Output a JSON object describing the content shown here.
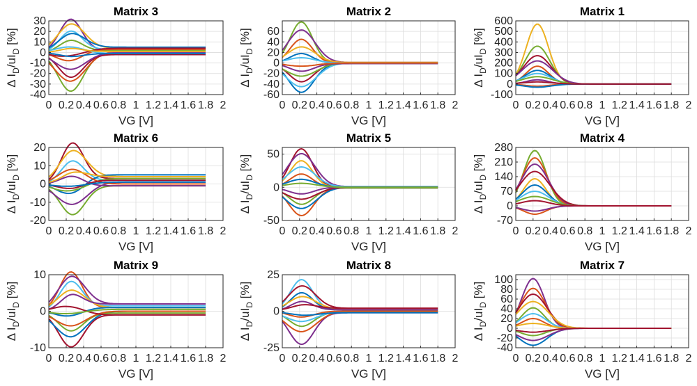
{
  "figure": {
    "xlabel": "VG [V]",
    "ylabel": "Δ I_D/uI_D [%]"
  },
  "chart_data": [
    {
      "type": "line",
      "title": "Matrix 3",
      "xlim": [
        0,
        2
      ],
      "ylim": [
        -40,
        30
      ],
      "xticks": [
        "0",
        "0.2",
        "0.4",
        "0.6",
        "0.8",
        "1",
        "1.2",
        "1.4",
        "1.6",
        "1.8",
        "2"
      ],
      "yticks": [
        -40,
        -30,
        -20,
        -10,
        0,
        10,
        20,
        30
      ],
      "grid": true,
      "x_end": 1.8,
      "peak_x": 0.25,
      "extremes": [
        30,
        -36
      ],
      "series": [
        {
          "color": "#7E2F8E",
          "peak": 30,
          "tail": 2
        },
        {
          "color": "#77AC30",
          "peak": -36,
          "tail": -1
        },
        {
          "color": "#EDB120",
          "peak": 24,
          "tail": 4
        },
        {
          "color": "#D95319",
          "peak": -28,
          "tail": 1
        },
        {
          "color": "#4DBEEE",
          "peak": 18,
          "tail": 3
        },
        {
          "color": "#A2142F",
          "peak": -22,
          "tail": -2
        },
        {
          "color": "#0072BD",
          "peak": 14,
          "tail": 5
        },
        {
          "color": "#7E2F8E",
          "peak": -16,
          "tail": 0
        },
        {
          "color": "#77AC30",
          "peak": 10,
          "tail": 2
        },
        {
          "color": "#D95319",
          "peak": -10,
          "tail": 3
        },
        {
          "color": "#4DBEEE",
          "peak": 6,
          "tail": -1
        },
        {
          "color": "#A2142F",
          "peak": -6,
          "tail": 4
        },
        {
          "color": "#EDB120",
          "peak": 3,
          "tail": 1
        },
        {
          "color": "#0072BD",
          "peak": -3,
          "tail": -1
        }
      ]
    },
    {
      "type": "line",
      "title": "Matrix 2",
      "xlim": [
        0,
        2
      ],
      "ylim": [
        -60,
        80
      ],
      "xticks": [
        "0",
        "0.2",
        "0.4",
        "0.6",
        "0.8",
        "1",
        "1.2",
        "1.4",
        "1.6",
        "1.8",
        "2"
      ],
      "yticks": [
        -60,
        -40,
        -20,
        0,
        20,
        40,
        60
      ],
      "grid": true,
      "x_end": 1.8,
      "peak_x": 0.22,
      "extremes": [
        78,
        -55
      ],
      "series": [
        {
          "color": "#77AC30",
          "peak": 78,
          "tail": 0
        },
        {
          "color": "#0072BD",
          "peak": -55,
          "tail": -1
        },
        {
          "color": "#7E2F8E",
          "peak": 62,
          "tail": 1
        },
        {
          "color": "#4DBEEE",
          "peak": -45,
          "tail": 0
        },
        {
          "color": "#D95319",
          "peak": 45,
          "tail": 0
        },
        {
          "color": "#A2142F",
          "peak": -35,
          "tail": -1
        },
        {
          "color": "#EDB120",
          "peak": 30,
          "tail": 1
        },
        {
          "color": "#77AC30",
          "peak": -25,
          "tail": 0
        },
        {
          "color": "#0072BD",
          "peak": 18,
          "tail": 0
        },
        {
          "color": "#7E2F8E",
          "peak": -15,
          "tail": -1
        },
        {
          "color": "#4DBEEE",
          "peak": 10,
          "tail": 0
        },
        {
          "color": "#D95319",
          "peak": -6,
          "tail": 0
        }
      ]
    },
    {
      "type": "line",
      "title": "Matrix 1",
      "xlim": [
        0,
        2
      ],
      "ylim": [
        -100,
        600
      ],
      "xticks": [
        "0",
        "0.2",
        "0.4",
        "0.6",
        "0.8",
        "1",
        "1.2",
        "1.4",
        "1.6",
        "1.8",
        "2"
      ],
      "yticks": [
        -100,
        0,
        100,
        200,
        300,
        400,
        500,
        600
      ],
      "grid": true,
      "x_end": 1.8,
      "peak_x": 0.25,
      "extremes": [
        570,
        -30
      ],
      "series": [
        {
          "color": "#EDB120",
          "peak": 570,
          "tail": 0
        },
        {
          "color": "#77AC30",
          "peak": 360,
          "tail": 0
        },
        {
          "color": "#A2142F",
          "peak": 270,
          "tail": 0
        },
        {
          "color": "#7E2F8E",
          "peak": 220,
          "tail": 0
        },
        {
          "color": "#D95319",
          "peak": 170,
          "tail": 0
        },
        {
          "color": "#0072BD",
          "peak": 130,
          "tail": 0
        },
        {
          "color": "#4DBEEE",
          "peak": 100,
          "tail": 0
        },
        {
          "color": "#77AC30",
          "peak": 70,
          "tail": 0
        },
        {
          "color": "#7E2F8E",
          "peak": 40,
          "tail": 0
        },
        {
          "color": "#D95319",
          "peak": -20,
          "tail": 0
        },
        {
          "color": "#0072BD",
          "peak": -30,
          "tail": 0
        },
        {
          "color": "#A2142F",
          "peak": 20,
          "tail": 0
        }
      ]
    },
    {
      "type": "line",
      "title": "Matrix 6",
      "xlim": [
        0,
        2
      ],
      "ylim": [
        -20,
        20
      ],
      "xticks": [
        "0",
        "0.2",
        "0.4",
        "0.6",
        "0.8",
        "1",
        "1.2",
        "1.4",
        "1.6",
        "1.8",
        "2"
      ],
      "yticks": [
        -20,
        -10,
        0,
        10,
        20
      ],
      "grid": true,
      "x_end": 1.8,
      "peak_x": 0.27,
      "extremes": [
        20,
        -16
      ],
      "series": [
        {
          "color": "#A2142F",
          "peak": 20,
          "tail": 3
        },
        {
          "color": "#77AC30",
          "peak": -16,
          "tail": -1
        },
        {
          "color": "#EDB120",
          "peak": 15,
          "tail": 4
        },
        {
          "color": "#7E2F8E",
          "peak": -12,
          "tail": 1
        },
        {
          "color": "#4DBEEE",
          "peak": 11,
          "tail": 2
        },
        {
          "color": "#0072BD",
          "peak": -9,
          "tail": 5
        },
        {
          "color": "#D95319",
          "peak": 8,
          "tail": 0
        },
        {
          "color": "#77AC30",
          "peak": -6,
          "tail": 3
        },
        {
          "color": "#7E2F8E",
          "peak": 5,
          "tail": -1
        },
        {
          "color": "#A2142F",
          "peak": -4,
          "tail": 2
        },
        {
          "color": "#EDB120",
          "peak": 3,
          "tail": 4
        },
        {
          "color": "#0072BD",
          "peak": -2,
          "tail": 1
        }
      ]
    },
    {
      "type": "line",
      "title": "Matrix 5",
      "xlim": [
        0,
        2
      ],
      "ylim": [
        -50,
        60
      ],
      "xticks": [
        "0",
        "0.2",
        "0.4",
        "0.6",
        "0.8",
        "1",
        "1.2",
        "1.4",
        "1.6",
        "1.8",
        "2"
      ],
      "yticks": [
        -50,
        0,
        50
      ],
      "grid": true,
      "x_end": 1.8,
      "peak_x": 0.22,
      "extremes": [
        58,
        -42
      ],
      "series": [
        {
          "color": "#A2142F",
          "peak": 58,
          "tail": 0
        },
        {
          "color": "#D95319",
          "peak": -42,
          "tail": -1
        },
        {
          "color": "#7E2F8E",
          "peak": 50,
          "tail": 1
        },
        {
          "color": "#0072BD",
          "peak": -32,
          "tail": 0
        },
        {
          "color": "#EDB120",
          "peak": 40,
          "tail": 0
        },
        {
          "color": "#77AC30",
          "peak": -25,
          "tail": -1
        },
        {
          "color": "#4DBEEE",
          "peak": 30,
          "tail": 1
        },
        {
          "color": "#A2142F",
          "peak": -18,
          "tail": 0
        },
        {
          "color": "#D95319",
          "peak": 20,
          "tail": 0
        },
        {
          "color": "#7E2F8E",
          "peak": -10,
          "tail": 0
        },
        {
          "color": "#0072BD",
          "peak": 12,
          "tail": 0
        },
        {
          "color": "#77AC30",
          "peak": 6,
          "tail": 0
        }
      ]
    },
    {
      "type": "line",
      "title": "Matrix 4",
      "xlim": [
        0,
        2
      ],
      "ylim": [
        -70,
        280
      ],
      "xticks": [
        "0",
        "0.2",
        "0.4",
        "0.6",
        "0.8",
        "1",
        "1.2",
        "1.4",
        "1.6",
        "1.8",
        "2"
      ],
      "yticks": [
        -70,
        0,
        70,
        140,
        210,
        280
      ],
      "grid": true,
      "x_end": 1.8,
      "peak_x": 0.22,
      "extremes": [
        265,
        -40
      ],
      "series": [
        {
          "color": "#77AC30",
          "peak": 265,
          "tail": 0
        },
        {
          "color": "#D95319",
          "peak": 230,
          "tail": 0
        },
        {
          "color": "#7E2F8E",
          "peak": 200,
          "tail": 0
        },
        {
          "color": "#A2142F",
          "peak": 165,
          "tail": 0
        },
        {
          "color": "#EDB120",
          "peak": 130,
          "tail": 0
        },
        {
          "color": "#0072BD",
          "peak": 100,
          "tail": 0
        },
        {
          "color": "#4DBEEE",
          "peak": 70,
          "tail": 0
        },
        {
          "color": "#77AC30",
          "peak": 45,
          "tail": 0
        },
        {
          "color": "#D95319",
          "peak": -40,
          "tail": 0
        },
        {
          "color": "#7E2F8E",
          "peak": -25,
          "tail": 0
        },
        {
          "color": "#A2142F",
          "peak": 25,
          "tail": 0
        }
      ]
    },
    {
      "type": "line",
      "title": "Matrix 9",
      "xlim": [
        0,
        2
      ],
      "ylim": [
        -10,
        10
      ],
      "xticks": [
        "0",
        "0.2",
        "0.4",
        "0.6",
        "0.8",
        "1",
        "1.2",
        "1.4",
        "1.6",
        "1.8",
        "2"
      ],
      "yticks": [
        -10,
        0,
        10
      ],
      "grid": true,
      "x_end": 1.8,
      "peak_x": 0.25,
      "extremes": [
        10,
        -9
      ],
      "series": [
        {
          "color": "#D95319",
          "peak": 10,
          "tail": 1
        },
        {
          "color": "#A2142F",
          "peak": -9,
          "tail": -1
        },
        {
          "color": "#7E2F8E",
          "peak": 8,
          "tail": 2
        },
        {
          "color": "#0072BD",
          "peak": -7,
          "tail": 0
        },
        {
          "color": "#4DBEEE",
          "peak": 7,
          "tail": 1.5
        },
        {
          "color": "#77AC30",
          "peak": -5,
          "tail": -0.5
        },
        {
          "color": "#EDB120",
          "peak": 5,
          "tail": 1
        },
        {
          "color": "#D95319",
          "peak": -4,
          "tail": 0
        },
        {
          "color": "#7E2F8E",
          "peak": 3,
          "tail": 2
        },
        {
          "color": "#0072BD",
          "peak": -2,
          "tail": 1
        },
        {
          "color": "#A2142F",
          "peak": 2,
          "tail": -1
        },
        {
          "color": "#77AC30",
          "peak": -1,
          "tail": 0.5
        }
      ]
    },
    {
      "type": "line",
      "title": "Matrix 8",
      "xlim": [
        0,
        2
      ],
      "ylim": [
        -25,
        25
      ],
      "xticks": [
        "0",
        "0.2",
        "0.4",
        "0.6",
        "0.8",
        "1",
        "1.2",
        "1.4",
        "1.6",
        "1.8",
        "2"
      ],
      "yticks": [
        -25,
        0,
        25
      ],
      "grid": true,
      "x_end": 1.8,
      "peak_x": 0.22,
      "extremes": [
        21,
        -22
      ],
      "series": [
        {
          "color": "#4DBEEE",
          "peak": 21,
          "tail": 1
        },
        {
          "color": "#7E2F8E",
          "peak": -22,
          "tail": -1
        },
        {
          "color": "#A2142F",
          "peak": 16,
          "tail": 2
        },
        {
          "color": "#D95319",
          "peak": -14,
          "tail": 0
        },
        {
          "color": "#0072BD",
          "peak": 12,
          "tail": 1
        },
        {
          "color": "#77AC30",
          "peak": -10,
          "tail": -0.5
        },
        {
          "color": "#EDB120",
          "peak": 9,
          "tail": 1.5
        },
        {
          "color": "#4DBEEE",
          "peak": -7,
          "tail": 0
        },
        {
          "color": "#7E2F8E",
          "peak": 6,
          "tail": 1
        },
        {
          "color": "#D95319",
          "peak": -4,
          "tail": 0
        },
        {
          "color": "#A2142F",
          "peak": 3,
          "tail": 2
        },
        {
          "color": "#0072BD",
          "peak": -2,
          "tail": -1
        }
      ]
    },
    {
      "type": "line",
      "title": "Matrix 7",
      "xlim": [
        0,
        2
      ],
      "ylim": [
        -40,
        110
      ],
      "xticks": [
        "0",
        "0.2",
        "0.4",
        "0.6",
        "0.8",
        "1",
        "1.2",
        "1.4",
        "1.6",
        "1.8",
        "2"
      ],
      "yticks": [
        -40,
        -20,
        0,
        20,
        40,
        60,
        80,
        100
      ],
      "grid": true,
      "x_end": 1.8,
      "peak_x": 0.2,
      "extremes": [
        102,
        -35
      ],
      "series": [
        {
          "color": "#7E2F8E",
          "peak": 102,
          "tail": 0
        },
        {
          "color": "#D95319",
          "peak": 82,
          "tail": 0
        },
        {
          "color": "#A2142F",
          "peak": 70,
          "tail": 0
        },
        {
          "color": "#EDB120",
          "peak": 55,
          "tail": 0
        },
        {
          "color": "#77AC30",
          "peak": 42,
          "tail": 0
        },
        {
          "color": "#4DBEEE",
          "peak": 30,
          "tail": 0
        },
        {
          "color": "#0072BD",
          "peak": -35,
          "tail": 0
        },
        {
          "color": "#7E2F8E",
          "peak": -25,
          "tail": 0
        },
        {
          "color": "#D95319",
          "peak": 20,
          "tail": 0
        },
        {
          "color": "#77AC30",
          "peak": -15,
          "tail": 0
        },
        {
          "color": "#EDB120",
          "peak": 10,
          "tail": 0
        },
        {
          "color": "#A2142F",
          "peak": -8,
          "tail": 0
        }
      ]
    }
  ]
}
